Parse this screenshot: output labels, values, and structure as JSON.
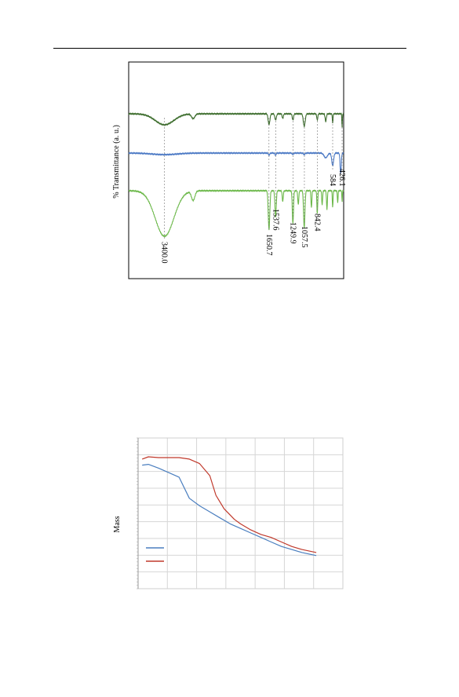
{
  "page": {
    "header_rule": true
  },
  "chart_data": [
    {
      "type": "line",
      "id": "ftir",
      "title": "",
      "xlabel": "",
      "ylabel": "% Transmittance (a. u.)",
      "grid": false,
      "legend": "none",
      "orientation": "rotated",
      "series": [
        {
          "color": "#3a6b2a",
          "name": ""
        },
        {
          "color": "#4a78c4",
          "name": ""
        },
        {
          "color": "#6cb84a",
          "name": ""
        }
      ],
      "peak_labels": [
        "3400.0",
        "1650.7",
        "1537.6",
        "1249.9",
        "1057.5",
        "842.4",
        "584",
        "426.1"
      ]
    },
    {
      "type": "line",
      "id": "tga",
      "title": "",
      "xlabel": "",
      "ylabel": "Mass",
      "grid": true,
      "legend": "bottom-left",
      "series": [
        {
          "name": "",
          "color": "#4a7ebf",
          "x": [
            0.02,
            0.05,
            0.1,
            0.15,
            0.2,
            0.25,
            0.3,
            0.35,
            0.4,
            0.45,
            0.5,
            0.55,
            0.6,
            0.65,
            0.7,
            0.75,
            0.8,
            0.87
          ],
          "y": [
            0.82,
            0.825,
            0.8,
            0.77,
            0.74,
            0.6,
            0.55,
            0.51,
            0.47,
            0.43,
            0.4,
            0.37,
            0.34,
            0.31,
            0.28,
            0.26,
            0.24,
            0.22
          ]
        },
        {
          "name": "",
          "color": "#c0392b",
          "x": [
            0.02,
            0.05,
            0.1,
            0.15,
            0.2,
            0.25,
            0.3,
            0.35,
            0.38,
            0.42,
            0.47,
            0.5,
            0.55,
            0.6,
            0.65,
            0.7,
            0.75,
            0.8,
            0.87
          ],
          "y": [
            0.86,
            0.875,
            0.87,
            0.87,
            0.87,
            0.86,
            0.83,
            0.75,
            0.62,
            0.53,
            0.46,
            0.43,
            0.39,
            0.36,
            0.34,
            0.31,
            0.28,
            0.26,
            0.24
          ]
        }
      ]
    }
  ]
}
